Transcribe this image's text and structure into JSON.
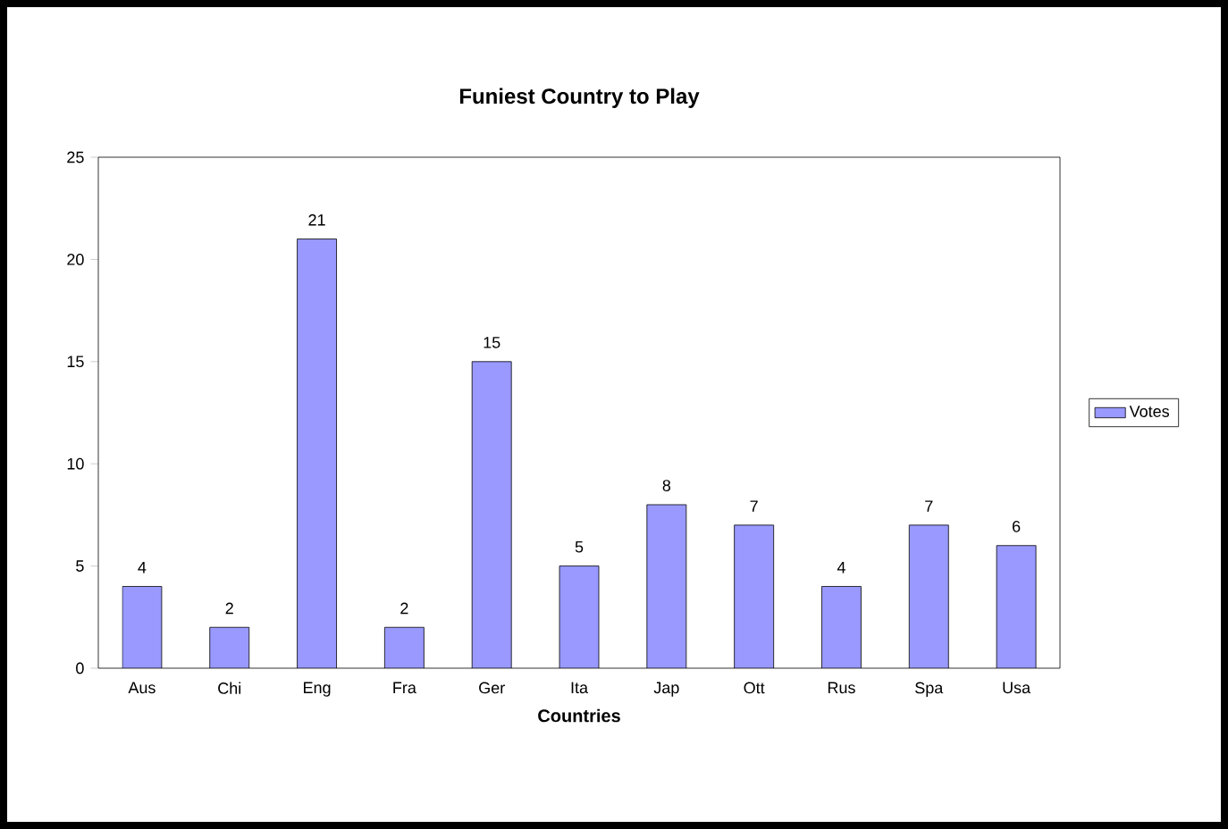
{
  "chart_data": {
    "type": "bar",
    "title": "Funiest Country to Play",
    "xlabel": "Countries",
    "categories": [
      "Aus",
      "Chi",
      "Eng",
      "Fra",
      "Ger",
      "Ita",
      "Jap",
      "Ott",
      "Rus",
      "Spa",
      "Usa"
    ],
    "series": [
      {
        "name": "Votes",
        "color": "#9999ff",
        "values": [
          4,
          2,
          21,
          2,
          15,
          5,
          8,
          7,
          4,
          7,
          6
        ]
      }
    ],
    "ylim": [
      0,
      25
    ],
    "yticks": [
      0,
      5,
      10,
      15,
      20,
      25
    ],
    "data_labels": true,
    "legend": "right"
  }
}
